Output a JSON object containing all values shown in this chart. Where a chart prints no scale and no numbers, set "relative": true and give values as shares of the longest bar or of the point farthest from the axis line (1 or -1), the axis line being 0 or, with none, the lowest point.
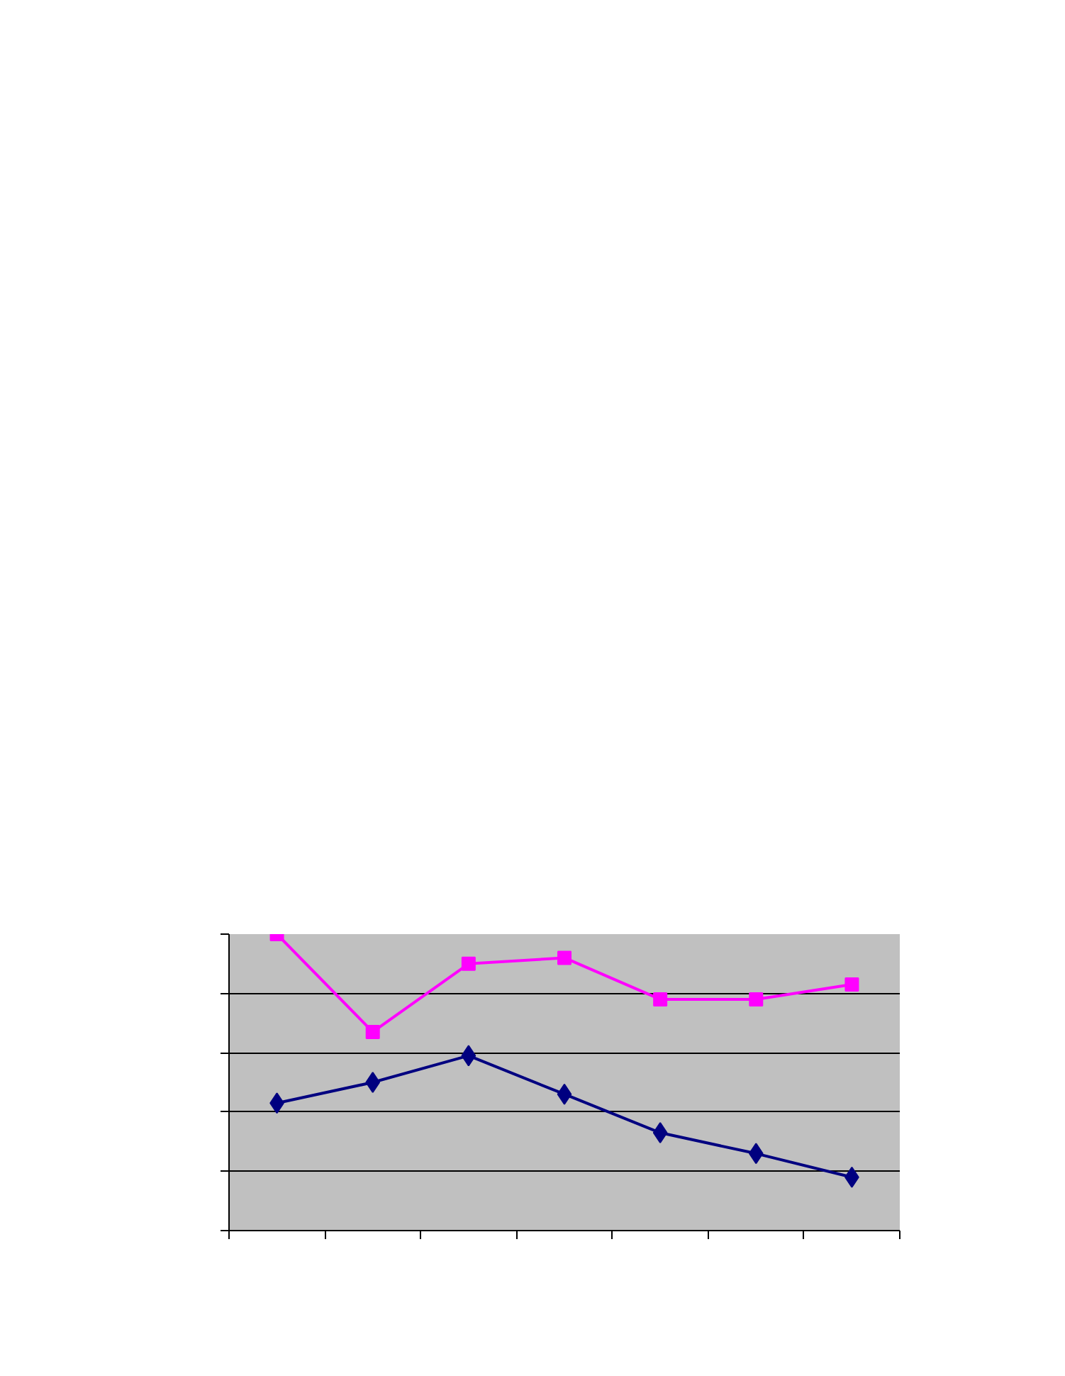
{
  "chart_data": {
    "type": "line",
    "relative": true,
    "categories": [
      null,
      null,
      null,
      null,
      null,
      null,
      null
    ],
    "series": [
      {
        "color": "#000080",
        "marker": "diamond",
        "values": [
          0.43,
          0.5,
          0.59,
          0.46,
          0.33,
          0.26,
          0.18
        ]
      },
      {
        "color": "#ff00ff",
        "marker": "square",
        "values": [
          1,
          0.67,
          0.9,
          0.92,
          0.78,
          0.78,
          0.83
        ]
      }
    ],
    "grid": "y",
    "line_style": "solid"
  }
}
